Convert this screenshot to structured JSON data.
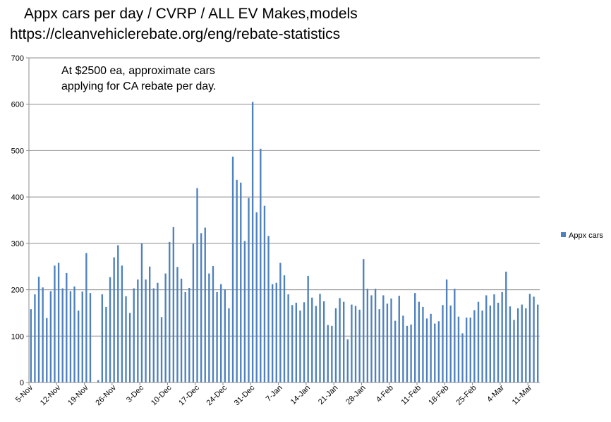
{
  "chart_data": {
    "type": "bar",
    "title_lines": [
      "Appx cars per day / CVRP / ALL EV Makes,models",
      "https://cleanvehiclerebate.org/eng/rebate-statistics"
    ],
    "annotation_lines": [
      "At $2500 ea, approximate cars",
      "applying for CA rebate per day."
    ],
    "xlabel": "",
    "ylabel": "",
    "ylim": [
      0,
      700
    ],
    "yticks": [
      0,
      100,
      200,
      300,
      400,
      500,
      600,
      700
    ],
    "x_tick_labels": [
      "5-Nov",
      "12-Nov",
      "19-Nov",
      "26-Nov",
      "3-Dec",
      "10-Dec",
      "17-Dec",
      "24-Dec",
      "31-Dec",
      "7-Jan",
      "14-Jan",
      "21-Jan",
      "28-Jan",
      "4-Feb",
      "11-Feb",
      "18-Feb",
      "25-Feb",
      "4-Mar",
      "11-Mar"
    ],
    "grid": true,
    "legend_position": "right",
    "series": [
      {
        "name": "Appx cars",
        "color": "#4F81BD",
        "values": [
          158,
          190,
          228,
          205,
          139,
          197,
          252,
          258,
          203,
          236,
          197,
          207,
          155,
          196,
          279,
          193,
          0,
          5,
          190,
          163,
          227,
          270,
          296,
          252,
          186,
          150,
          203,
          222,
          300,
          222,
          250,
          203,
          215,
          141,
          235,
          303,
          335,
          249,
          224,
          195,
          204,
          299,
          419,
          322,
          334,
          235,
          251,
          195,
          212,
          201,
          160,
          487,
          437,
          431,
          305,
          398,
          605,
          367,
          504,
          381,
          316,
          212,
          215,
          258,
          231,
          190,
          167,
          172,
          155,
          173,
          230,
          183,
          165,
          191,
          175,
          124,
          122,
          160,
          182,
          174,
          93,
          168,
          165,
          157,
          266,
          202,
          188,
          202,
          158,
          188,
          170,
          181,
          133,
          187,
          144,
          122,
          125,
          193,
          174,
          163,
          138,
          148,
          127,
          132,
          167,
          222,
          166,
          202,
          142,
          106,
          140,
          140,
          156,
          174,
          155,
          188,
          166,
          190,
          172,
          195,
          239,
          164,
          135,
          160,
          168,
          160,
          191,
          185,
          168
        ]
      }
    ]
  }
}
